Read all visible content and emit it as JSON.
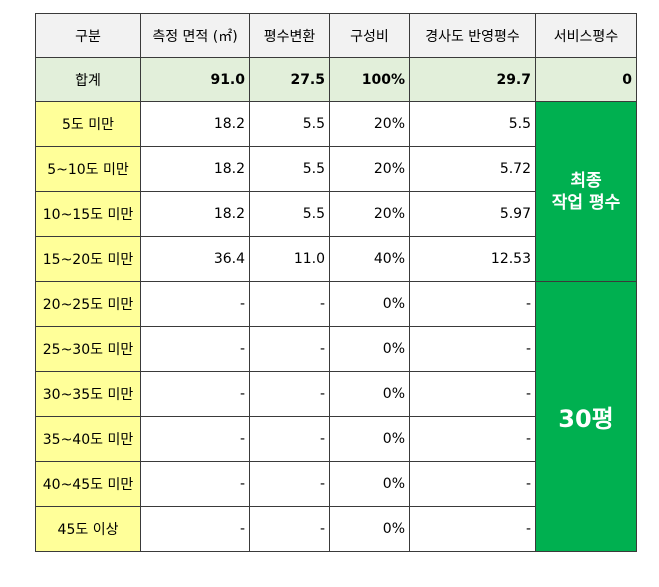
{
  "headers": [
    "구분",
    "측정 면적 (㎡)",
    "평수변환",
    "구성비",
    "경사도 반영평수",
    "서비스평수"
  ],
  "total": {
    "label": "합계",
    "area": "91.0",
    "pyeong": "27.5",
    "ratio": "100%",
    "adjusted": "29.7",
    "service": "0"
  },
  "rows": [
    {
      "label": "5도 미만",
      "area": "18.2",
      "pyeong": "5.5",
      "ratio": "20%",
      "adjusted": "5.5"
    },
    {
      "label": "5~10도 미만",
      "area": "18.2",
      "pyeong": "5.5",
      "ratio": "20%",
      "adjusted": "5.72"
    },
    {
      "label": "10~15도 미만",
      "area": "18.2",
      "pyeong": "5.5",
      "ratio": "20%",
      "adjusted": "5.97"
    },
    {
      "label": "15~20도 미만",
      "area": "36.4",
      "pyeong": "11.0",
      "ratio": "40%",
      "adjusted": "12.53"
    },
    {
      "label": "20~25도 미만",
      "area": "-",
      "pyeong": "-",
      "ratio": "0%",
      "adjusted": "-"
    },
    {
      "label": "25~30도 미만",
      "area": "-",
      "pyeong": "-",
      "ratio": "0%",
      "adjusted": "-"
    },
    {
      "label": "30~35도 미만",
      "area": "-",
      "pyeong": "-",
      "ratio": "0%",
      "adjusted": "-"
    },
    {
      "label": "35~40도 미만",
      "area": "-",
      "pyeong": "-",
      "ratio": "0%",
      "adjusted": "-"
    },
    {
      "label": "40~45도 미만",
      "area": "-",
      "pyeong": "-",
      "ratio": "0%",
      "adjusted": "-"
    },
    {
      "label": "45도 이상",
      "area": "-",
      "pyeong": "-",
      "ratio": "0%",
      "adjusted": "-"
    }
  ],
  "final_box": {
    "line1": "최종",
    "line2": "작업 평수"
  },
  "result_box": {
    "value": "30평"
  },
  "colors": {
    "header_bg": "#f2f2f2",
    "total_bg": "#e2efda",
    "category_bg": "#ffff99",
    "highlight_bg": "#00b050"
  }
}
